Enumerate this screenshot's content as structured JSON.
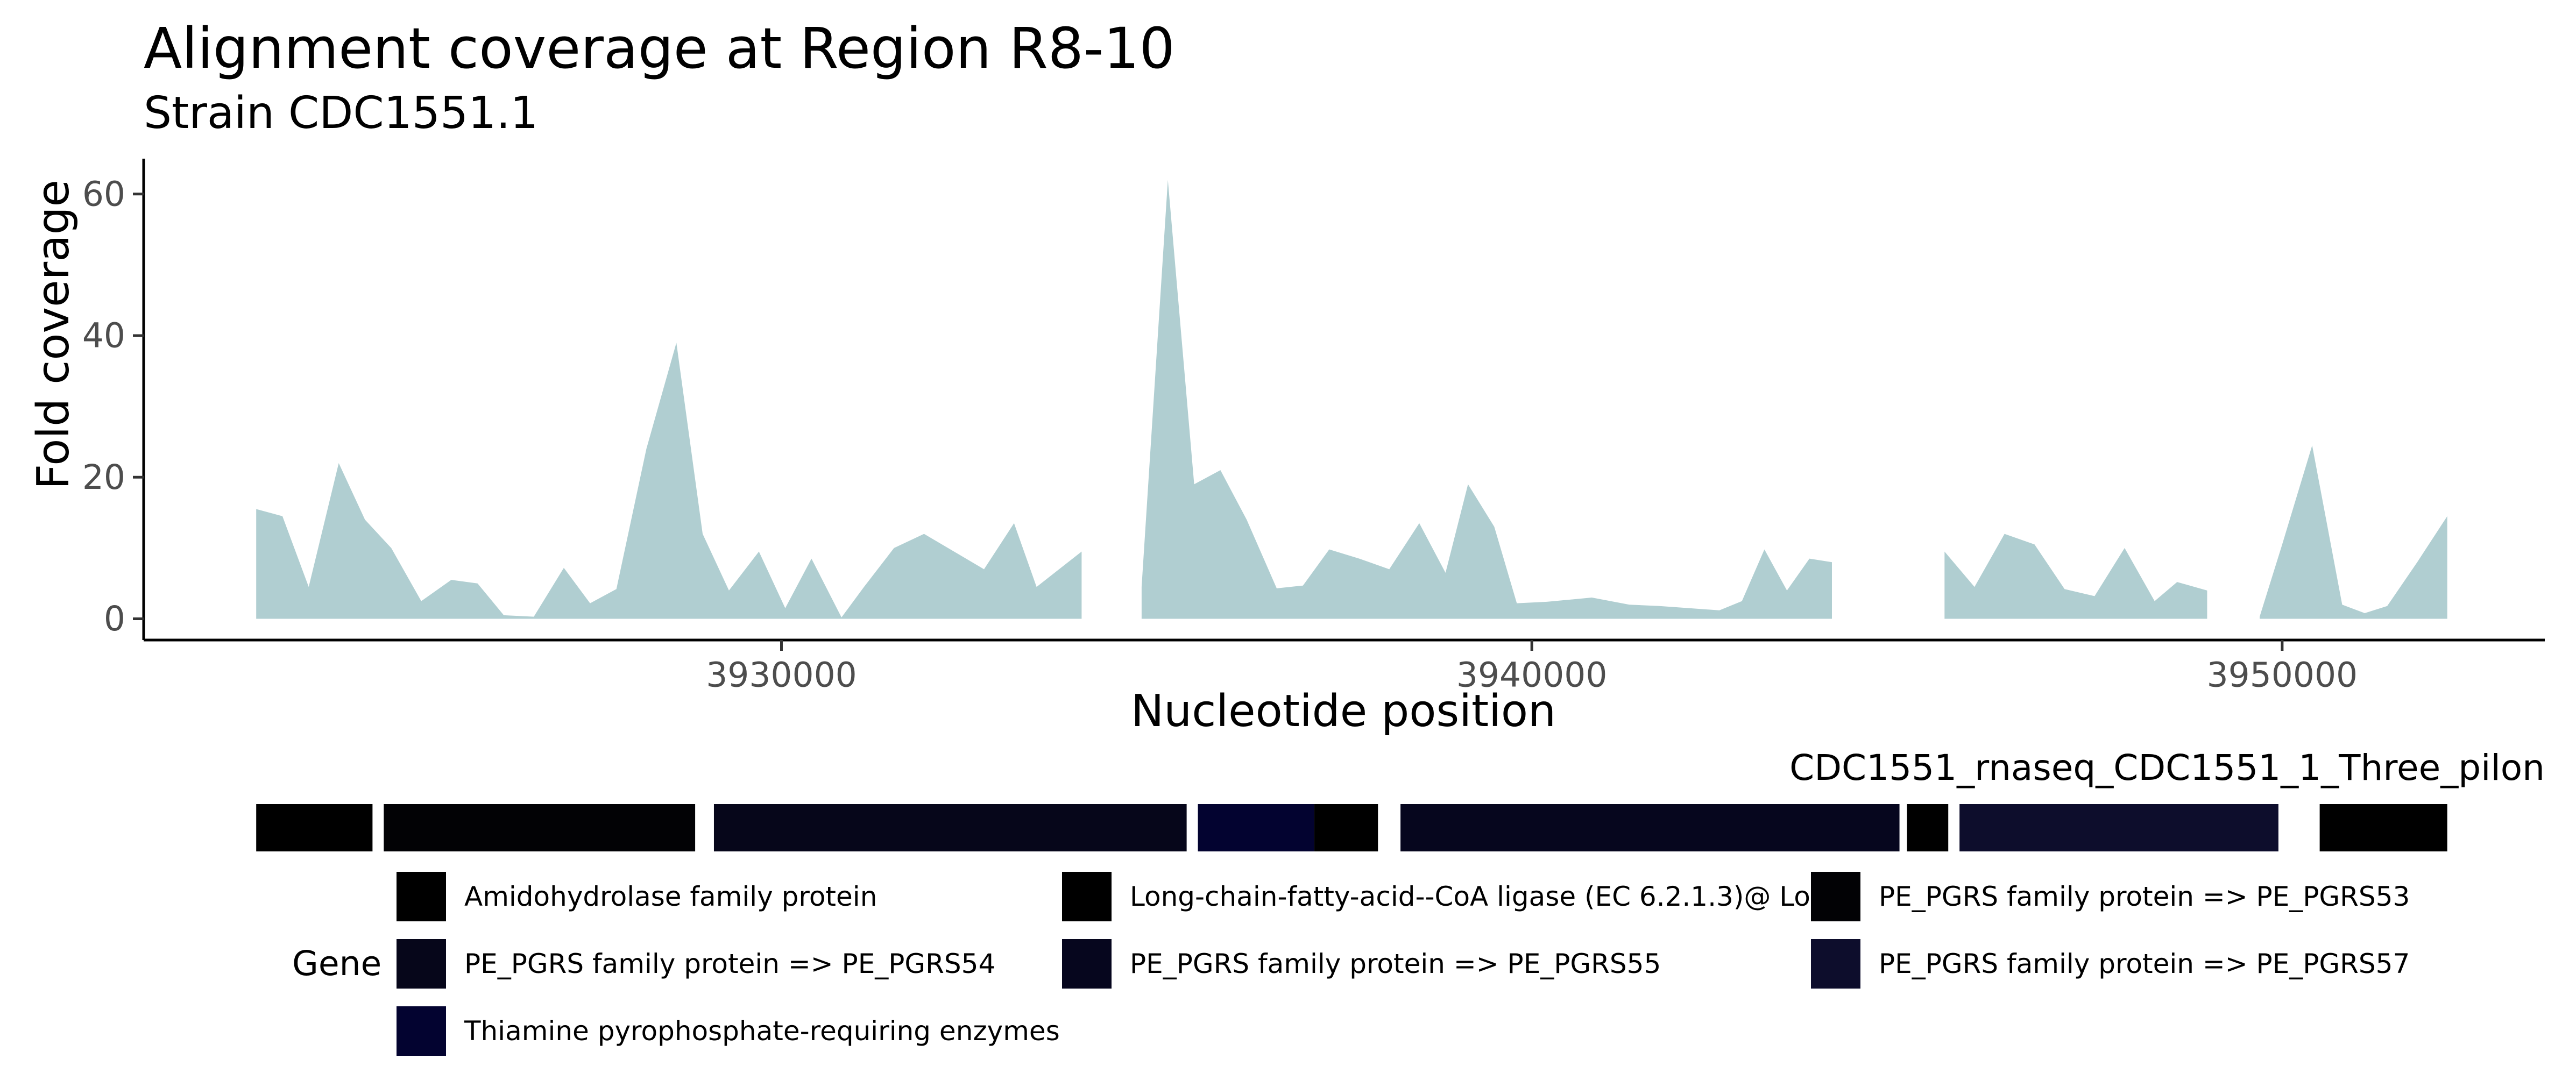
{
  "chart_data": {
    "type": "area",
    "title": "Alignment coverage at Region R8-10",
    "subtitle": "Strain CDC1551.1",
    "xlabel": "Nucleotide position",
    "ylabel": "Fold coverage",
    "xlim": [
      3921500,
      3953500
    ],
    "ylim": [
      -3,
      65
    ],
    "x_ticks": [
      3930000,
      3940000,
      3950000
    ],
    "x_tick_labels": [
      "3930000",
      "3940000",
      "3950000"
    ],
    "y_ticks": [
      0,
      20,
      40,
      60
    ],
    "y_tick_labels": [
      "0",
      "20",
      "40",
      "60"
    ],
    "grid": false,
    "area_color": "#b0ced1",
    "coverage_segments": [
      {
        "x": [
          3923000,
          3923350,
          3923700,
          3924100,
          3924450,
          3924800,
          3925200,
          3925600,
          3925950,
          3926300,
          3926700
        ],
        "y": [
          15.5,
          14.5,
          4.5,
          22,
          14,
          10,
          2.5,
          5.5,
          5,
          0.5,
          0.3
        ]
      },
      {
        "x": [
          3926700,
          3927100,
          3927450,
          3927800,
          3928200,
          3928600,
          3928950,
          3929300,
          3929700,
          3930050,
          3930400,
          3930800,
          3931100,
          3931500,
          3931900,
          3932300,
          3932700,
          3933100,
          3933400,
          3933700,
          3934000
        ],
        "y": [
          0.3,
          7.2,
          2.2,
          4.2,
          24,
          39,
          12,
          4,
          9.5,
          1.5,
          8.5,
          0.2,
          4.5,
          10,
          12,
          9.5,
          7,
          13.5,
          4.5,
          7,
          9.5
        ]
      },
      {
        "x": [
          3934800,
          3935150,
          3935500,
          3935850,
          3936200,
          3936600,
          3936950,
          3937300,
          3937700,
          3938100,
          3938500,
          3938850,
          3939150,
          3939500,
          3939800,
          3940200,
          3940800,
          3941300,
          3941700,
          3942100,
          3942500,
          3942800,
          3943100,
          3943400,
          3943700,
          3944000
        ],
        "y": [
          4.5,
          62,
          19,
          21,
          14,
          4.3,
          4.7,
          9.8,
          8.5,
          7,
          13.5,
          6.5,
          19,
          13,
          2.2,
          2.4,
          3,
          2,
          1.8,
          1.5,
          1.2,
          2.5,
          9.8,
          4,
          8.5,
          8
        ]
      },
      {
        "x": [
          3945500,
          3945900,
          3946300,
          3946700,
          3947100,
          3947500,
          3947900,
          3948300,
          3948600,
          3949000
        ],
        "y": [
          9.5,
          4.5,
          12,
          10.5,
          4.2,
          3.2,
          10,
          2.5,
          5.2,
          4
        ]
      },
      {
        "x": [
          3949700,
          3950000,
          3950400,
          3950800,
          3951100,
          3951400,
          3951800,
          3952200
        ],
        "y": [
          0.3,
          10.5,
          24.5,
          2,
          0.8,
          1.8,
          8,
          14.5
        ]
      }
    ],
    "annotation_track": {
      "label": "CDC1551_rnaseq_CDC1551_1_Three_pilon",
      "features": [
        {
          "gene": "Long-chain-fatty-acid--CoA ligase (EC 6.2.1.3)@ Lo",
          "start": 3923000,
          "end": 3924550,
          "color": "#000000"
        },
        {
          "gene": "PE_PGRS family protein => PE_PGRS53",
          "start": 3924700,
          "end": 3928850,
          "color": "#020205"
        },
        {
          "gene": "PE_PGRS family protein => PE_PGRS54",
          "start": 3929100,
          "end": 3935400,
          "color": "#06061a"
        },
        {
          "gene": "Thiamine pyrophosphate-requiring enzymes",
          "start": 3935550,
          "end": 3937100,
          "color": "#030330"
        },
        {
          "gene": "Amidohydrolase family protein",
          "start": 3937100,
          "end": 3937950,
          "color": "#000000"
        },
        {
          "gene": "PE_PGRS family protein => PE_PGRS55",
          "start": 3938250,
          "end": 3944900,
          "color": "#06061e"
        },
        {
          "gene": "Amidohydrolase family protein",
          "start": 3945000,
          "end": 3945550,
          "color": "#000000"
        },
        {
          "gene": "PE_PGRS family protein => PE_PGRS57",
          "start": 3945700,
          "end": 3949950,
          "color": "#0d0d2c"
        },
        {
          "gene": "Long-chain-fatty-acid--CoA ligase (EC 6.2.1.3)@ Lo",
          "start": 3950500,
          "end": 3952200,
          "color": "#000000"
        }
      ]
    },
    "legend": {
      "title": "Gene",
      "entries": [
        {
          "label": "Amidohydrolase family protein",
          "color": "#000000"
        },
        {
          "label": "Long-chain-fatty-acid--CoA ligase (EC 6.2.1.3)@ Lo",
          "color": "#000000"
        },
        {
          "label": "PE_PGRS family protein => PE_PGRS53",
          "color": "#020205"
        },
        {
          "label": "PE_PGRS family protein => PE_PGRS54",
          "color": "#06061a"
        },
        {
          "label": "PE_PGRS family protein => PE_PGRS55",
          "color": "#06061e"
        },
        {
          "label": "PE_PGRS family protein => PE_PGRS57",
          "color": "#0d0d2c"
        },
        {
          "label": "Thiamine pyrophosphate-requiring enzymes",
          "color": "#030330"
        }
      ]
    }
  }
}
